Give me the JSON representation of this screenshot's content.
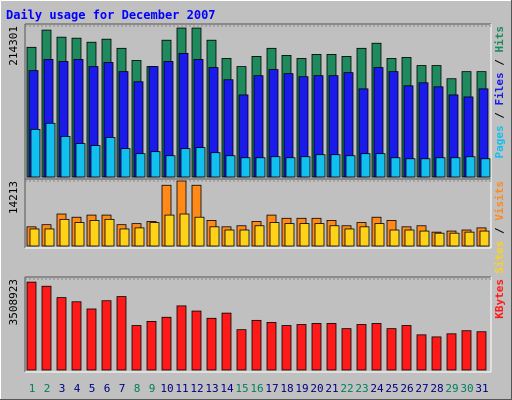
{
  "chart_data": [
    {
      "type": "bar",
      "title": "Daily usage for December 2007",
      "ylim": [
        0,
        214301
      ],
      "yticks": [
        214301
      ],
      "series": [
        {
          "name": "Hits",
          "color": "#1e8a5e",
          "values": [
            184064,
            208510,
            198444,
            197006,
            191254,
            195568,
            182626,
            165370,
            156742,
            194130,
            211386,
            211386,
            194130,
            168246,
            156742,
            171122,
            182626,
            172560,
            168246,
            173998,
            173998,
            171122,
            182626,
            189816,
            168246,
            169684,
            158180,
            158180,
            139486,
            149552,
            149552
          ]
        },
        {
          "name": "Files",
          "color": "#1a1aeb",
          "values": [
            150990,
            166808,
            163932,
            166808,
            156742,
            162494,
            149552,
            135172,
            156742,
            163932,
            175436,
            166808,
            155304,
            138048,
            116478,
            143800,
            152428,
            146676,
            142362,
            143800,
            143800,
            148114,
            125106,
            155304,
            149552,
            129420,
            133734,
            127982,
            116478,
            113602,
            125106
          ]
        },
        {
          "name": "Pages",
          "color": "#12c0f0",
          "values": [
            67586,
            76214,
            57520,
            47454,
            44578,
            56082,
            40264,
            33074,
            35950,
            30198,
            40264,
            41702,
            34512,
            30198,
            27322,
            27322,
            28760,
            27322,
            28760,
            31636,
            31636,
            30198,
            33074,
            33074,
            27322,
            25884,
            25884,
            27322,
            27322,
            28760,
            25884
          ]
        }
      ]
    },
    {
      "type": "bar",
      "ylim": [
        0,
        14213
      ],
      "yticks": [
        14213
      ],
      "series": [
        {
          "name": "Visits",
          "color": "#ff8a1a",
          "values": [
            4194,
            4660,
            6990,
            6291,
            6757,
            6757,
            4660,
            4893,
            5359,
            13281,
            14213,
            13281,
            5592,
            4194,
            4427,
            5359,
            6757,
            6058,
            6058,
            6058,
            5592,
            4427,
            5126,
            6291,
            5592,
            4194,
            4427,
            3029,
            3262,
            3495,
            3961
          ]
        },
        {
          "name": "Sites",
          "color": "#ffd21a",
          "values": [
            3728,
            3728,
            5825,
            5126,
            5592,
            5825,
            3728,
            3961,
            5126,
            6757,
            6990,
            6291,
            4194,
            3495,
            3495,
            4427,
            5126,
            4893,
            4893,
            4893,
            4427,
            3728,
            4194,
            4893,
            3495,
            3495,
            3262,
            2796,
            2796,
            3029,
            3262
          ]
        }
      ]
    },
    {
      "type": "bar",
      "ylim": [
        0,
        3508923
      ],
      "yticks": [
        3508923
      ],
      "categories": [
        "1",
        "2",
        "3",
        "4",
        "5",
        "6",
        "7",
        "8",
        "9",
        "10",
        "11",
        "12",
        "13",
        "14",
        "15",
        "16",
        "17",
        "18",
        "19",
        "20",
        "21",
        "22",
        "23",
        "24",
        "25",
        "26",
        "27",
        "28",
        "29",
        "30",
        "31"
      ],
      "weekend": [
        true,
        true,
        false,
        false,
        false,
        false,
        false,
        true,
        true,
        false,
        false,
        false,
        false,
        false,
        true,
        true,
        false,
        false,
        false,
        false,
        false,
        true,
        true,
        false,
        false,
        false,
        false,
        false,
        true,
        true,
        false
      ],
      "weekday_color": "#000080",
      "weekend_color": "#00805c",
      "series": [
        {
          "name": "KBytes",
          "color": "#ff1a1a",
          "values": [
            3389290,
            3229794,
            2791180,
            2631684,
            2352566,
            2671558,
            2831054,
            1714582,
            1874078,
            2033574,
            2472188,
            2272818,
            1993700,
            2193070,
            1555086,
            1913952,
            1834204,
            1714582,
            1754456,
            1794330,
            1794330,
            1594960,
            1754456,
            1794330,
            1594960,
            1714582,
            1355716,
            1275968,
            1395590,
            1515212,
            1475338
          ]
        }
      ]
    }
  ]
}
